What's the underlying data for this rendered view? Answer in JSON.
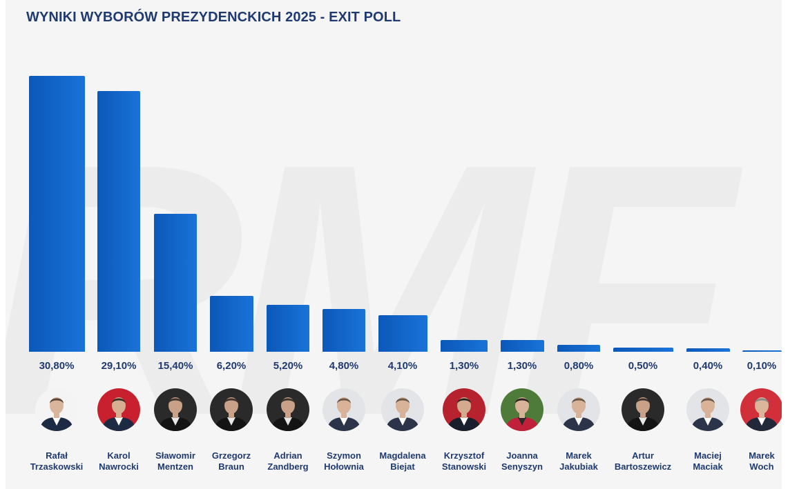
{
  "title": "WYNIKI WYBORÓW PREZYDENCKICH 2025 - EXIT POLL",
  "watermark": "RMF",
  "colors": {
    "bar_dark": "#0b58b8",
    "bar_light": "#1a73d9",
    "text": "#1f3a70",
    "background": "#f5f5f5"
  },
  "chart_data": {
    "type": "bar",
    "categories": [
      "Rafał Trzaskowski",
      "Karol Nawrocki",
      "Sławomir Mentzen",
      "Grzegorz Braun",
      "Adrian Zandberg",
      "Szymon Hołownia",
      "Magdalena Biejat",
      "Krzysztof Stanowski",
      "Joanna Senyszyn",
      "Marek Jakubiak",
      "Artur Bartoszewicz",
      "Maciej Maciak",
      "Marek Woch"
    ],
    "values": [
      30.8,
      29.1,
      15.4,
      6.2,
      5.2,
      4.8,
      4.1,
      1.3,
      1.3,
      0.8,
      0.5,
      0.4,
      0.1
    ],
    "value_labels": [
      "30,80%",
      "29,10%",
      "15,40%",
      "6,20%",
      "5,20%",
      "4,80%",
      "4,10%",
      "1,30%",
      "1,30%",
      "0,80%",
      "0,50%",
      "0,40%",
      "0,10%"
    ],
    "title": "WYNIKI WYBORÓW PREZYDENCKICH 2025 - EXIT POLL",
    "xlabel": "",
    "ylabel": "",
    "ylim": [
      0,
      30.8
    ],
    "grid": false,
    "legend": "none"
  },
  "candidates": [
    {
      "first": "Rafał",
      "last": "Trzaskowski",
      "photo": "white"
    },
    {
      "first": "Karol",
      "last": "Nawrocki",
      "photo": "flag"
    },
    {
      "first": "Sławomir",
      "last": "Mentzen",
      "photo": "dark"
    },
    {
      "first": "Grzegorz",
      "last": "Braun",
      "photo": "dark"
    },
    {
      "first": "Adrian",
      "last": "Zandberg",
      "photo": "dark"
    },
    {
      "first": "Szymon",
      "last": "Hołownia",
      "photo": "light"
    },
    {
      "first": "Magdalena",
      "last": "Biejat",
      "photo": "light"
    },
    {
      "first": "Krzysztof",
      "last": "Stanowski",
      "photo": "flags"
    },
    {
      "first": "Joanna",
      "last": "Senyszyn",
      "photo": "green"
    },
    {
      "first": "Marek",
      "last": "Jakubiak",
      "photo": "light"
    },
    {
      "first": "Artur",
      "last": "Bartoszewicz",
      "photo": "dark"
    },
    {
      "first": "Maciej",
      "last": "Maciak",
      "photo": "light"
    },
    {
      "first": "Marek",
      "last": "Woch",
      "photo": "red"
    }
  ]
}
